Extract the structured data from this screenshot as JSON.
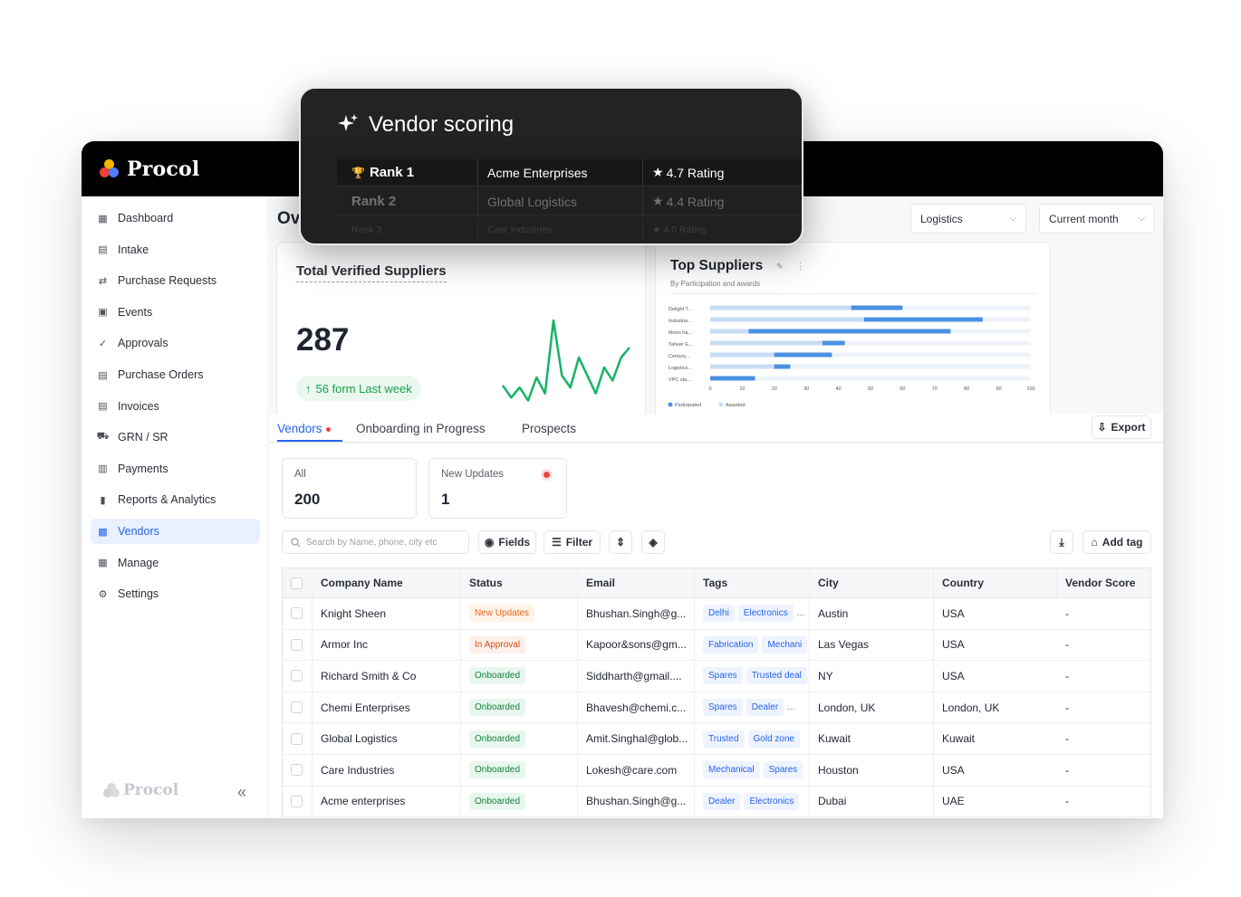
{
  "brand": {
    "name": "Procol"
  },
  "sidebar": {
    "items": [
      {
        "label": "Dashboard",
        "icon": "dashboard-icon"
      },
      {
        "label": "Intake",
        "icon": "intake-icon"
      },
      {
        "label": "Purchase Requests",
        "icon": "purchase-requests-icon"
      },
      {
        "label": "Events",
        "icon": "events-icon"
      },
      {
        "label": "Approvals",
        "icon": "approvals-icon"
      },
      {
        "label": "Purchase Orders",
        "icon": "purchase-orders-icon"
      },
      {
        "label": "Invoices",
        "icon": "invoices-icon"
      },
      {
        "label": "GRN / SR",
        "icon": "grn-icon"
      },
      {
        "label": "Payments",
        "icon": "payments-icon"
      },
      {
        "label": "Reports & Analytics",
        "icon": "reports-icon"
      },
      {
        "label": "Vendors",
        "icon": "vendors-icon",
        "active": true
      },
      {
        "label": "Manage",
        "icon": "manage-icon"
      },
      {
        "label": "Settings",
        "icon": "settings-icon"
      }
    ],
    "footer_brand": "Procol",
    "collapse_glyph": "«"
  },
  "overview": {
    "title": "Overview",
    "filter_category": "Logistics",
    "filter_period": "Current month"
  },
  "verified": {
    "title": "Total Verified Suppliers",
    "value": "287",
    "delta": "56 form Last week",
    "sparkline": [
      20,
      8,
      18,
      5,
      28,
      12,
      85,
      30,
      18,
      48,
      30,
      12,
      38,
      25,
      48,
      58
    ]
  },
  "top_suppliers": {
    "title": "Top Suppliers",
    "subtitle": "By Participation and awards",
    "legend": [
      "Participated",
      "Awarded"
    ],
    "chart_data": {
      "type": "bar",
      "orientation": "horizontal",
      "categories": [
        "Delight T...",
        "Industria...",
        "Moon ha...",
        "Taheer E...",
        "Century...",
        "Logistics...",
        "VPC sta..."
      ],
      "series": [
        {
          "name": "Participated",
          "values": [
            60,
            85,
            75,
            42,
            38,
            25,
            14
          ]
        },
        {
          "name": "Awarded",
          "values": [
            44,
            48,
            12,
            35,
            20,
            20,
            0
          ]
        }
      ],
      "xticks": [
        "0",
        "10",
        "20",
        "30",
        "40",
        "50",
        "60",
        "70",
        "80",
        "90",
        "100"
      ],
      "xlim": [
        0,
        100
      ],
      "legend_position": "bottom-left"
    }
  },
  "tabs": {
    "items": [
      "Vendors",
      "Onboarding in Progress",
      "Prospects"
    ],
    "export_label": "Export"
  },
  "stats": {
    "all_label": "All",
    "all_value": "200",
    "updates_label": "New Updates",
    "updates_value": "1"
  },
  "toolbar": {
    "search_placeholder": "Search by Name, phone, city etc",
    "fields_label": "Fields",
    "filter_label": "Filter",
    "add_tag_label": "Add tag"
  },
  "table": {
    "columns": [
      "Company Name",
      "Status",
      "Email",
      "Tags",
      "City",
      "Country",
      "Vendor Score"
    ],
    "rows": [
      {
        "company": "Knight Sheen",
        "status": "New Updates",
        "status_type": "new",
        "email": "Bhushan.Singh@g...",
        "tags": [
          "Delhi",
          "Electronics",
          "..."
        ],
        "city": "Austin",
        "country": "USA",
        "score": "-"
      },
      {
        "company": "Armor Inc",
        "status": "In Approval",
        "status_type": "approval",
        "email": "Kapoor&sons@gm...",
        "tags": [
          "Fabrication",
          "Mechani"
        ],
        "city": "Las Vegas",
        "country": "USA",
        "score": "-"
      },
      {
        "company": "Richard Smith & Co",
        "status": "Onboarded",
        "status_type": "onboarded",
        "email": "Siddharth@gmail....",
        "tags": [
          "Spares",
          "Trusted deal"
        ],
        "city": "NY",
        "country": "USA",
        "score": "-"
      },
      {
        "company": "Chemi Enterprises",
        "status": "Onboarded",
        "status_type": "onboarded",
        "email": "Bhavesh@chemi.c...",
        "tags": [
          "Spares",
          "Dealer",
          "..."
        ],
        "city": "London, UK",
        "country": "London, UK",
        "score": "-"
      },
      {
        "company": "Global Logistics",
        "status": "Onboarded",
        "status_type": "onboarded",
        "email": "Amit.Singhal@glob...",
        "tags": [
          "Trusted",
          "Gold zone"
        ],
        "city": "Kuwait",
        "country": "Kuwait",
        "score": "-"
      },
      {
        "company": "Care Industries",
        "status": "Onboarded",
        "status_type": "onboarded",
        "email": "Lokesh@care.com",
        "tags": [
          "Mechanical",
          "Spares"
        ],
        "city": "Houston",
        "country": "USA",
        "score": "-"
      },
      {
        "company": "Acme enterprises",
        "status": "Onboarded",
        "status_type": "onboarded",
        "email": "Bhushan.Singh@g...",
        "tags": [
          "Dealer",
          "Electronics"
        ],
        "city": "Dubai",
        "country": "UAE",
        "score": "-"
      }
    ]
  },
  "vendor_scoring": {
    "title": "Vendor scoring",
    "ranks": [
      {
        "rank": "Rank 1",
        "company": "Acme Enterprises",
        "rating": "4.7 Rating"
      },
      {
        "rank": "Rank 2",
        "company": "Global Logistics",
        "rating": "4.4 Rating"
      },
      {
        "rank": "Rank 3",
        "company": "Care Industries",
        "rating": "4.0 Rating"
      }
    ]
  },
  "colors": {
    "accent": "#2563eb",
    "participated": "#4a90e2",
    "awarded": "#c9dcf6",
    "sparkline": "#16b364"
  }
}
